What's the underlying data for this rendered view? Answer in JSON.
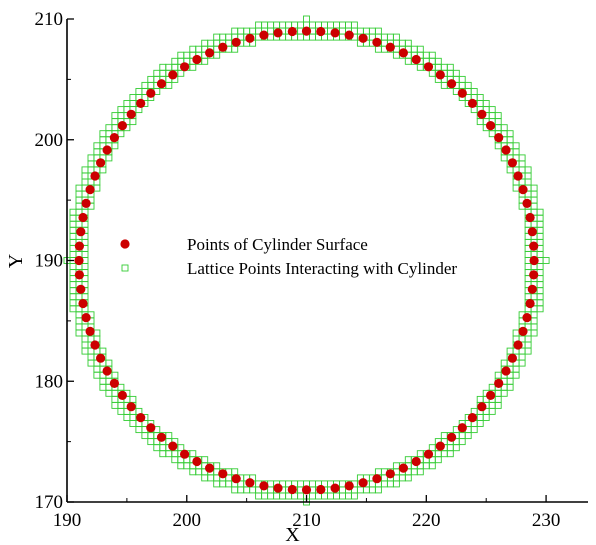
{
  "chart_data": {
    "type": "scatter",
    "xlabel": "X",
    "ylabel": "Y",
    "xlim": [
      190,
      233.5
    ],
    "ylim": [
      170,
      210
    ],
    "xticks": [
      190,
      200,
      210,
      220,
      230
    ],
    "yticks": [
      170,
      180,
      190,
      200,
      210
    ],
    "xtick_labels": [
      "190",
      "200",
      "210",
      "220",
      "230"
    ],
    "ytick_labels": [
      "170",
      "180",
      "190",
      "200",
      "210"
    ],
    "grid": false,
    "legend_position": "center",
    "legend": [
      {
        "label": "Points of Cylinder Surface"
      },
      {
        "label": "Lattice Points Interacting with Cylinder"
      }
    ],
    "series": [
      {
        "label": "Points of Cylinder Surface",
        "marker": "filled-circle",
        "color": "#cc0000",
        "circle": {
          "center": [
            210,
            190
          ],
          "radius": 19,
          "n_points": 100
        }
      },
      {
        "label": "Lattice Points Interacting with Cylinder",
        "marker": "open-square",
        "color": "#33cc33",
        "lattice": {
          "spacing": 0.5,
          "center": [
            210,
            190
          ],
          "r_inner": 18.5,
          "r_outer": 20.0
        }
      }
    ]
  }
}
